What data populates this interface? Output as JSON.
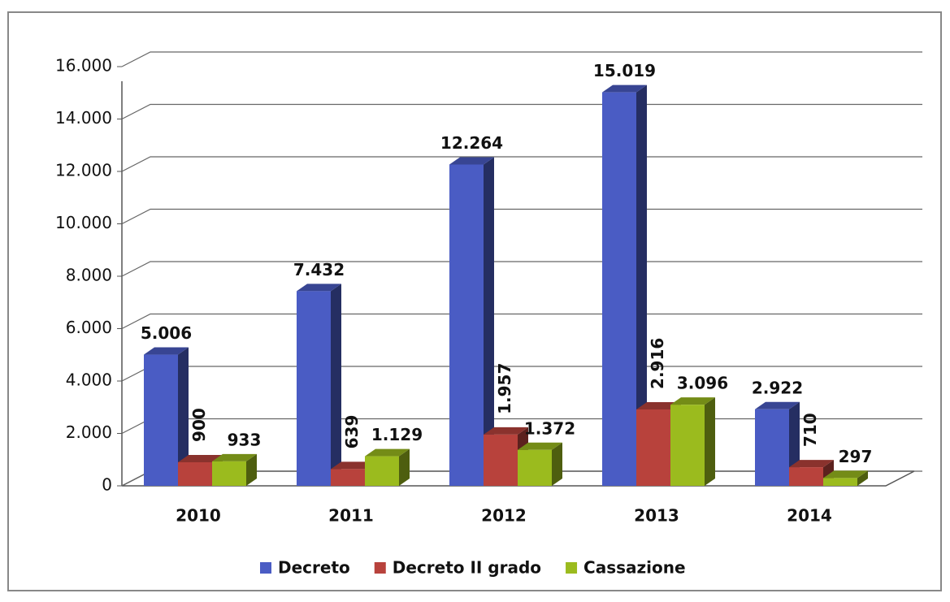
{
  "chart_data": {
    "type": "bar3d",
    "categories": [
      "2010",
      "2011",
      "2012",
      "2013",
      "2014"
    ],
    "series": [
      {
        "name": "Decreto",
        "color": "#4a5cc4",
        "values": [
          5006,
          7432,
          12264,
          15019,
          2922
        ],
        "value_labels": [
          "5.006",
          "7.432",
          "12.264",
          "15.019",
          "2.922"
        ]
      },
      {
        "name": "Decreto II grado",
        "color": "#b8423c",
        "values": [
          900,
          639,
          1957,
          2916,
          710
        ],
        "value_labels": [
          "900",
          "639",
          "1.957",
          "2.916",
          "710"
        ]
      },
      {
        "name": "Cassazione",
        "color": "#9bbb1e",
        "values": [
          933,
          1129,
          1372,
          3096,
          297
        ],
        "value_labels": [
          "933",
          "1.129",
          "1.372",
          "3.096",
          "297"
        ]
      }
    ],
    "ylim": [
      0,
      16000
    ],
    "yticks": [
      0,
      {
        "value": 2000,
        "label": "2.000"
      },
      {
        "value": 4000,
        "label": "4.000"
      },
      {
        "value": 6000,
        "label": "6.000"
      },
      {
        "value": 8000,
        "label": "8.000"
      },
      {
        "value": 10000,
        "label": "10.000"
      },
      {
        "value": 12000,
        "label": "12.000"
      },
      {
        "value": 14000,
        "label": "14.000"
      },
      {
        "value": 16000,
        "label": "16.000"
      }
    ],
    "grid": true,
    "legend": "bottom"
  }
}
